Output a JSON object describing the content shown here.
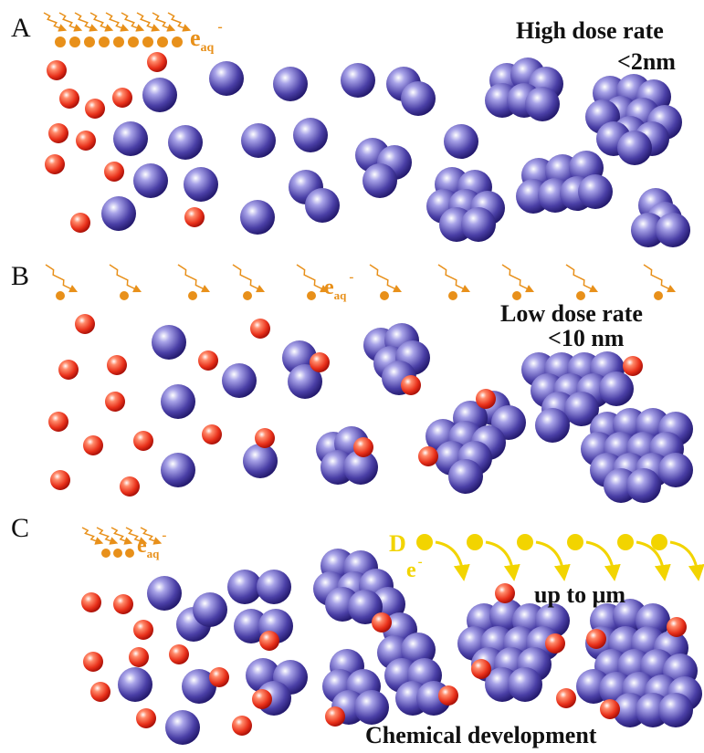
{
  "panels": [
    {
      "label": "A",
      "title": "High dose rate",
      "size": "<2nm",
      "electron": {
        "symbol": "e",
        "sub": "aq",
        "sup": "-"
      }
    },
    {
      "label": "B",
      "title": "Low dose rate",
      "size": "<10 nm",
      "electron": {
        "symbol": "e",
        "sub": "aq",
        "sup": "-"
      }
    },
    {
      "label": "C",
      "electron": {
        "symbol": "e",
        "sub": "aq",
        "sup": "-"
      },
      "developer": {
        "label": "D",
        "symbol": "e",
        "sup": "-"
      },
      "size": "up to μm",
      "caption": "Chemical development"
    }
  ]
}
